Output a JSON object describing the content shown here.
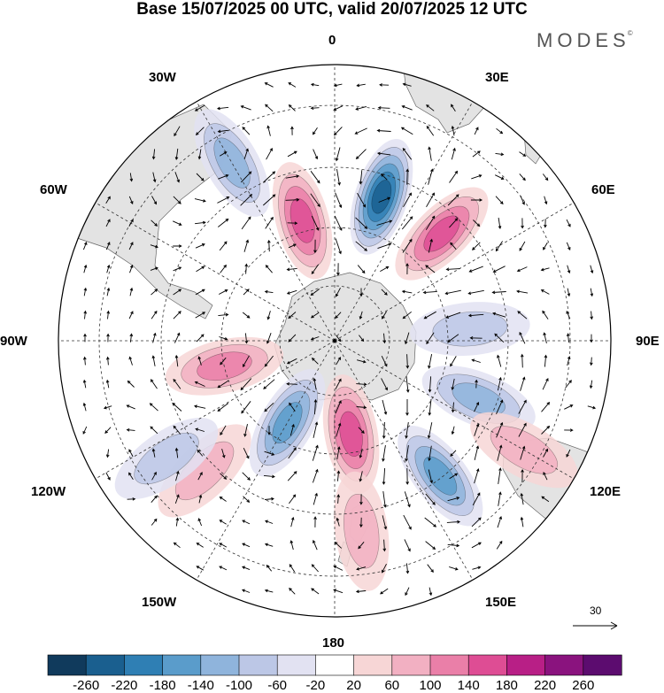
{
  "title": "Base 15/07/2025 00 UTC, valid 20/07/2025 12 UTC",
  "brand": "MODES",
  "brand_mark": "©",
  "longitude_labels": {
    "lon_0": "0",
    "lon_30e": "30E",
    "lon_60e": "60E",
    "lon_90e": "90E",
    "lon_120e": "120E",
    "lon_150e": "150E",
    "lon_180": "180",
    "lon_150w": "150W",
    "lon_120w": "120W",
    "lon_90w": "90W",
    "lon_60w": "60W",
    "lon_30w": "30W"
  },
  "projection": "south polar stereographic",
  "reference_vector": {
    "label": "30"
  },
  "colorbar": {
    "ticks": [
      "-260",
      "-220",
      "-180",
      "-140",
      "-100",
      "-60",
      "-20",
      "20",
      "60",
      "100",
      "140",
      "180",
      "220",
      "260"
    ],
    "colors": [
      "#103a5c",
      "#1a5f8f",
      "#2f7fb4",
      "#5a9ccb",
      "#8fb4dc",
      "#bcc7e6",
      "#e2e2f2",
      "#ffffff",
      "#f7d6d6",
      "#f2b0c2",
      "#ea7fa8",
      "#de4d94",
      "#b81f86",
      "#8a137e",
      "#5c0c6f"
    ]
  },
  "colors": {
    "land": "#e3e3e3",
    "positive_accent": "#de4d94",
    "negative_accent": "#2f7fb4"
  },
  "anomaly_centers": [
    {
      "sign": "negative",
      "level": 5,
      "lon": 18,
      "lat": -48
    },
    {
      "sign": "positive",
      "level": 3,
      "lon": -15,
      "lat": -55
    },
    {
      "sign": "positive",
      "level": 3,
      "lon": 45,
      "lat": -48
    },
    {
      "sign": "negative",
      "level": 3,
      "lon": 142,
      "lat": -43
    },
    {
      "sign": "negative",
      "level": 3,
      "lon": -150,
      "lat": -63
    },
    {
      "sign": "positive",
      "level": 3,
      "lon": 170,
      "lat": -63
    },
    {
      "sign": "positive",
      "level": 2,
      "lon": -103,
      "lat": -58
    },
    {
      "sign": "negative",
      "level": 2,
      "lon": -30,
      "lat": -35
    },
    {
      "sign": "negative",
      "level": 1,
      "lon": 85,
      "lat": -52
    },
    {
      "sign": "negative",
      "level": 2,
      "lon": 112,
      "lat": -47
    },
    {
      "sign": "positive",
      "level": 1,
      "lon": -135,
      "lat": -40
    },
    {
      "sign": "positive",
      "level": 1,
      "lon": 172,
      "lat": -38
    },
    {
      "sign": "positive",
      "level": 1,
      "lon": 120,
      "lat": -32
    },
    {
      "sign": "negative",
      "level": 1,
      "lon": -125,
      "lat": -35
    }
  ]
}
